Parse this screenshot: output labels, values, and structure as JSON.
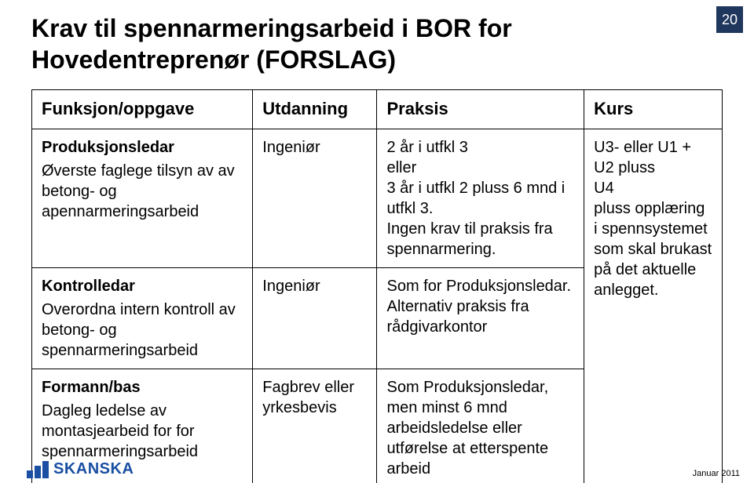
{
  "page_number": "20",
  "title_line1": "Krav til spennarmeringsarbeid i BOR for",
  "title_line2": "Hovedentreprenør (FORSLAG)",
  "footer_date": "Januar 2011",
  "logo_text": "SKANSKA",
  "logo_color": "#1a4fa3",
  "page_number_bg": "#1f365d",
  "table": {
    "headers": {
      "funksjon": "Funksjon/oppgave",
      "utdanning": "Utdanning",
      "praksis": "Praksis",
      "kurs": "Kurs"
    },
    "rows": [
      {
        "role_title": "Produksjonsledar",
        "role_desc": "Øverste faglege tilsyn av av betong- og apennarmeringsarbeid",
        "utdanning": "Ingeniør",
        "praksis": "2 år i utfkl 3\neller\n3 år i utfkl 2 pluss 6 mnd i utfkl 3.\nIngen krav til praksis fra spennarmering."
      },
      {
        "role_title": "Kontrolledar",
        "role_desc": "Overordna intern kontroll av betong- og spennarmeringsarbeid",
        "utdanning": "Ingeniør",
        "praksis": "Som for Produksjonsledar. Alternativ praksis fra rådgivarkontor"
      },
      {
        "role_title": "Formann/bas",
        "role_desc": "Dagleg ledelse av montasjearbeid for for spennarmeringsarbeid",
        "utdanning": "Fagbrev eller yrkesbevis",
        "praksis": "Som Produksjonsledar, men minst 6 mnd arbeidsledelse eller utførelse at etterspente arbeid"
      }
    ],
    "kurs_merged": "U3- eller U1 + U2 pluss\nU4\npluss opplæring i spennsystemet som skal brukast på det aktuelle anlegget."
  }
}
